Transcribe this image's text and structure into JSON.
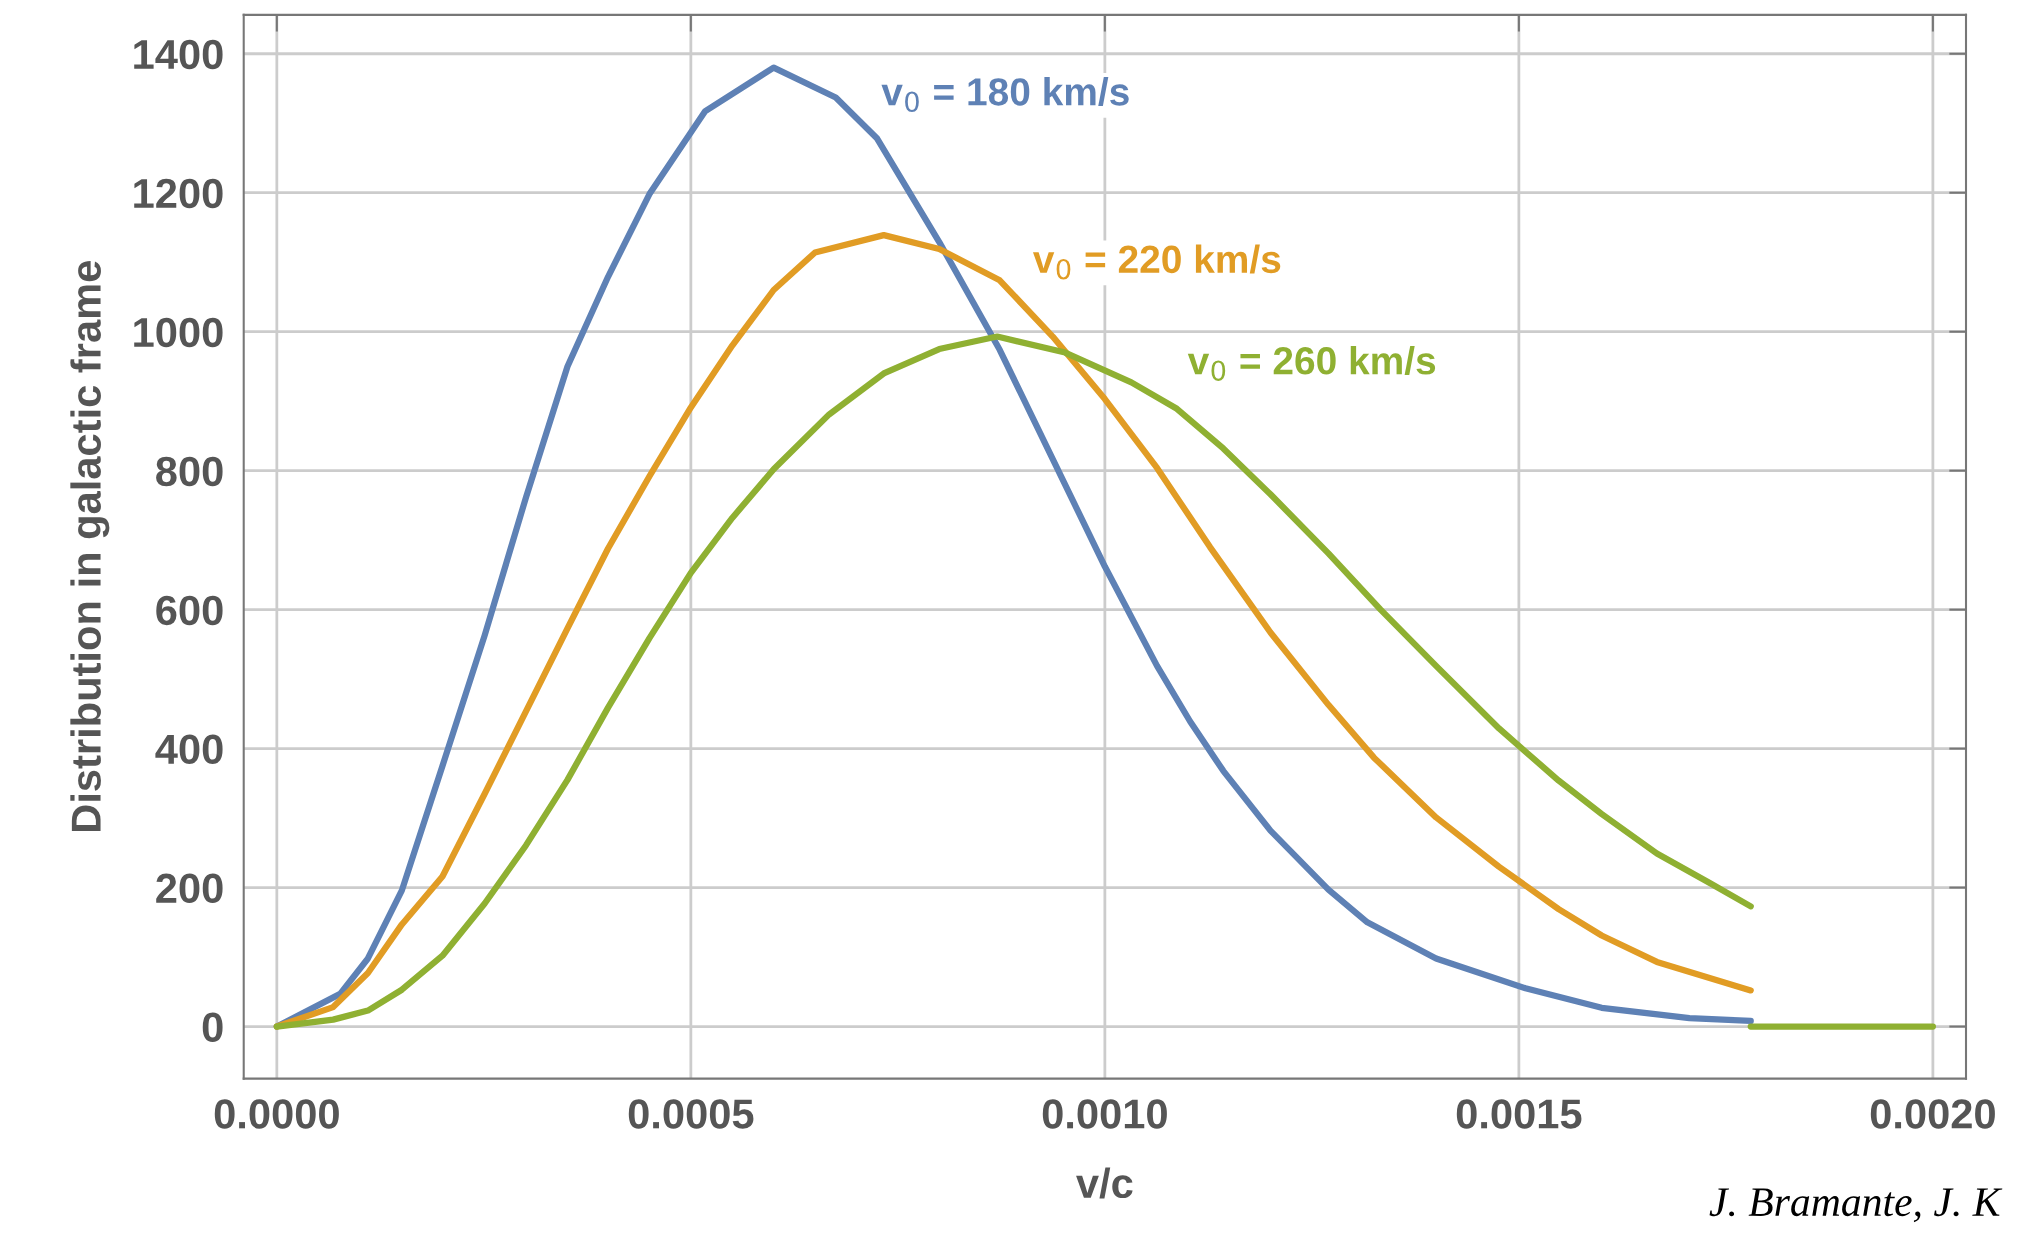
{
  "chart_data": {
    "type": "line",
    "xlabel": "v/c",
    "ylabel": "Distribution in galactic frame",
    "annotations": [
      "J. Bramante, J. K"
    ],
    "xlim": [
      -4e-05,
      0.00204
    ],
    "ylim": [
      -75,
      1456
    ],
    "xticks": [
      {
        "value": 0,
        "label": "0.0000"
      },
      {
        "value": 0.0005,
        "label": "0.0005"
      },
      {
        "value": 0.001,
        "label": "0.0010"
      },
      {
        "value": 0.0015,
        "label": "0.0015"
      },
      {
        "value": 0.002,
        "label": "0.0020"
      }
    ],
    "yticks": [
      0,
      200,
      400,
      600,
      800,
      1000,
      1200,
      1400
    ],
    "grid": true,
    "legend": false,
    "marker": "none",
    "line_style": "solid",
    "series": [
      {
        "name": "v$_{0}$ = 180 km/s",
        "color": "#5e81b5",
        "x": [
          0,
          7.65e-05,
          0.00011,
          0.000151,
          0.0002,
          0.000251,
          0.000301,
          0.000351,
          0.0004,
          0.00045,
          0.000517,
          0.0006,
          0.000675,
          0.000725,
          0.0008,
          0.000873,
          0.001,
          0.001063,
          0.001103,
          0.001143,
          0.0012,
          0.00127,
          0.001317,
          0.0014,
          0.001508,
          0.0016,
          0.001706,
          0.00178
        ],
        "values": [
          0,
          47,
          98,
          196,
          375,
          563,
          762,
          950,
          1079,
          1198,
          1317,
          1380,
          1337,
          1278,
          1129,
          974,
          662,
          519,
          439,
          368,
          282,
          197,
          150,
          98,
          55,
          27,
          12,
          8
        ]
      },
      {
        "name": "v$_{0}$ = 220 km/s",
        "color": "#e19c24",
        "x": [
          0,
          6.8e-05,
          0.00011,
          0.000151,
          0.0002,
          0.000251,
          0.000301,
          0.000351,
          0.0004,
          0.00045,
          0.0005,
          0.00055,
          0.0006,
          0.00065,
          0.000733,
          0.0008,
          0.000873,
          0.000937,
          0.001,
          0.001063,
          0.001127,
          0.0012,
          0.00127,
          0.001325,
          0.0014,
          0.001476,
          0.001548,
          0.0016,
          0.0016667,
          0.00178
        ],
        "values": [
          0,
          28,
          77,
          147,
          216,
          335,
          454,
          573,
          688,
          792,
          891,
          980,
          1060,
          1114,
          1139,
          1119,
          1074,
          993,
          903,
          804,
          690,
          567,
          463,
          387,
          301,
          230,
          169,
          131,
          93,
          52
        ]
      },
      {
        "name": "v$_{0}$ = 260 km/s",
        "color": "#8fb032",
        "x": [
          0,
          6.8e-05,
          0.00011,
          0.000151,
          0.0002,
          0.000251,
          0.000301,
          0.000351,
          0.0004,
          0.00045,
          0.0005,
          0.00055,
          0.0006,
          0.000667,
          0.000733,
          0.0008,
          0.00087,
          0.000952,
          0.001032,
          0.001087,
          0.001143,
          0.0012,
          0.00127,
          0.001333,
          0.0014,
          0.001476,
          0.001548,
          0.0016,
          0.0016667,
          0.00173,
          0.00178
        ],
        "values": [
          0,
          10,
          23,
          53,
          102,
          177,
          261,
          355,
          459,
          559,
          653,
          732,
          802,
          881,
          940,
          975,
          993,
          970,
          927,
          889,
          832,
          766,
          681,
          600,
          519,
          429,
          354,
          306,
          249,
          207,
          173
        ]
      },
      {
        "color": "#8fb032",
        "x": [
          0.00178,
          0.002
        ],
        "values": [
          0,
          0
        ]
      }
    ]
  }
}
